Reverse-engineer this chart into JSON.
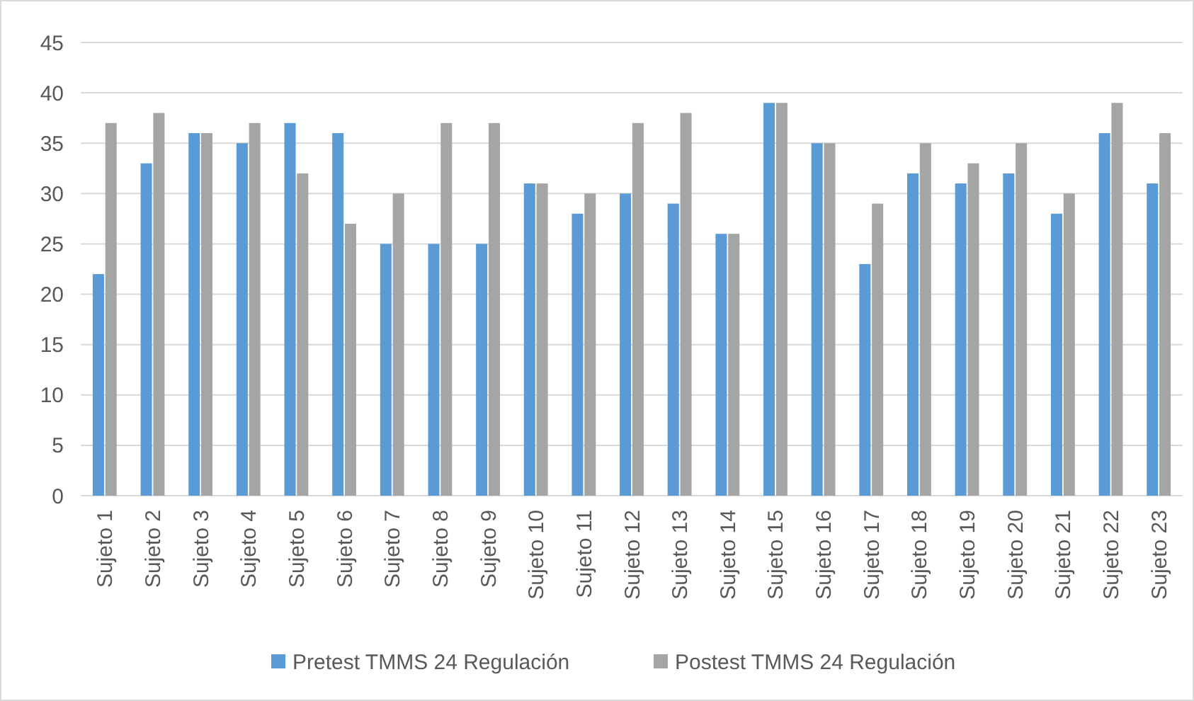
{
  "chart_data": {
    "type": "bar",
    "categories": [
      "Sujeto 1",
      "Sujeto 2",
      "Sujeto 3",
      "Sujeto 4",
      "Sujeto 5",
      "Sujeto 6",
      "Sujeto 7",
      "Sujeto 8",
      "Sujeto 9",
      "Sujeto 10",
      "Sujeto 11",
      "Sujeto 12",
      "Sujeto 13",
      "Sujeto 14",
      "Sujeto 15",
      "Sujeto 16",
      "Sujeto 17",
      "Sujeto 18",
      "Sujeto 19",
      "Sujeto 20",
      "Sujeto 21",
      "Sujeto 22",
      "Sujeto 23"
    ],
    "series": [
      {
        "name": "Pretest TMMS 24 Regulación",
        "color": "#5b9bd5",
        "values": [
          22,
          33,
          36,
          35,
          37,
          36,
          25,
          25,
          25,
          31,
          28,
          30,
          29,
          26,
          39,
          35,
          23,
          32,
          31,
          32,
          28,
          36,
          31
        ]
      },
      {
        "name": "Postest TMMS 24 Regulación",
        "color": "#a5a5a5",
        "values": [
          37,
          38,
          36,
          37,
          32,
          27,
          30,
          37,
          37,
          31,
          30,
          37,
          38,
          26,
          39,
          35,
          29,
          35,
          33,
          35,
          30,
          39,
          36
        ]
      }
    ],
    "ylim": [
      0,
      45
    ],
    "yticks": [
      0,
      5,
      10,
      15,
      20,
      25,
      30,
      35,
      40,
      45
    ],
    "grid": "y",
    "legend": "bottom"
  }
}
